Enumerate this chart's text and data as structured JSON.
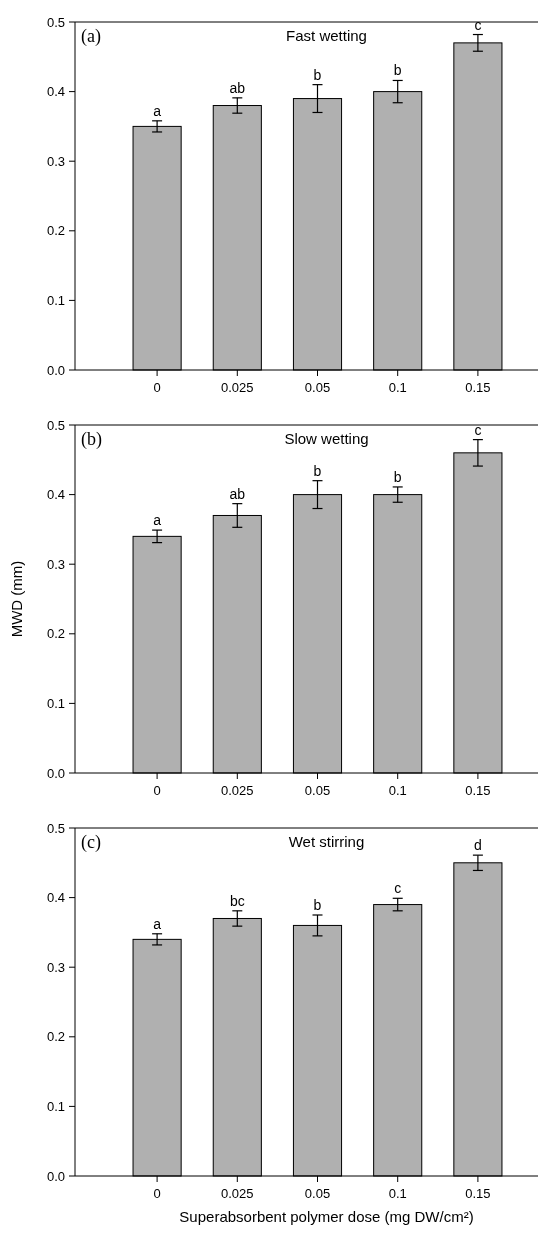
{
  "chart_data": [
    {
      "type": "bar",
      "title": "Fast wetting",
      "annotations": [
        "(a)",
        {
          "text": "a",
          "x": "0",
          "y": 0.358
        },
        {
          "text": "ab",
          "x": "0.025",
          "y": 0.391
        },
        {
          "text": "b",
          "x": "0.05",
          "y": 0.41
        },
        {
          "text": "b",
          "x": "0.1",
          "y": 0.416
        },
        {
          "text": "c",
          "x": "0.15",
          "y": 0.482
        }
      ],
      "categories": [
        "0",
        "0.025",
        "0.05",
        "0.1",
        "0.15"
      ],
      "values": [
        0.35,
        0.38,
        0.39,
        0.4,
        0.47
      ],
      "errors": [
        0.008,
        0.011,
        0.02,
        0.016,
        0.012
      ],
      "color": "#b0b0b0",
      "ylim": [
        0,
        0.5
      ],
      "yticks": [
        {
          "value": 0,
          "label": "0.0"
        },
        {
          "value": 0.1,
          "label": "0.1"
        },
        {
          "value": 0.2,
          "label": "0.2"
        },
        {
          "value": 0.3,
          "label": "0.3"
        },
        {
          "value": 0.4,
          "label": "0.4"
        },
        {
          "value": 0.5,
          "label": "0.5"
        }
      ]
    },
    {
      "type": "bar",
      "title": "Slow wetting",
      "ylabel": "MWD (mm)",
      "annotations": [
        "(b)",
        {
          "text": "a",
          "x": "0",
          "y": 0.349
        },
        {
          "text": "ab",
          "x": "0.025",
          "y": 0.387
        },
        {
          "text": "b",
          "x": "0.05",
          "y": 0.42
        },
        {
          "text": "b",
          "x": "0.1",
          "y": 0.411
        },
        {
          "text": "c",
          "x": "0.15",
          "y": 0.479
        }
      ],
      "categories": [
        "0",
        "0.025",
        "0.05",
        "0.1",
        "0.15"
      ],
      "values": [
        0.34,
        0.37,
        0.4,
        0.4,
        0.46
      ],
      "errors": [
        0.009,
        0.017,
        0.02,
        0.011,
        0.019
      ],
      "color": "#b0b0b0",
      "ylim": [
        0,
        0.5
      ],
      "yticks": [
        {
          "value": 0,
          "label": "0.0"
        },
        {
          "value": 0.1,
          "label": "0.1"
        },
        {
          "value": 0.2,
          "label": "0.2"
        },
        {
          "value": 0.3,
          "label": "0.3"
        },
        {
          "value": 0.4,
          "label": "0.4"
        },
        {
          "value": 0.5,
          "label": "0.5"
        }
      ]
    },
    {
      "type": "bar",
      "title": "Wet stirring",
      "xlabel": "Superabsorbent polymer dose (mg DW/cm²)",
      "annotations": [
        "(c)",
        {
          "text": "a",
          "x": "0",
          "y": 0.348
        },
        {
          "text": "bc",
          "x": "0.025",
          "y": 0.381
        },
        {
          "text": "b",
          "x": "0.05",
          "y": 0.375
        },
        {
          "text": "c",
          "x": "0.1",
          "y": 0.399
        },
        {
          "text": "d",
          "x": "0.15",
          "y": 0.461
        }
      ],
      "categories": [
        "0",
        "0.025",
        "0.05",
        "0.1",
        "0.15"
      ],
      "values": [
        0.34,
        0.37,
        0.36,
        0.39,
        0.45
      ],
      "errors": [
        0.008,
        0.011,
        0.015,
        0.009,
        0.011
      ],
      "color": "#b0b0b0",
      "ylim": [
        0,
        0.5
      ],
      "yticks": [
        {
          "value": 0,
          "label": "0.0"
        },
        {
          "value": 0.1,
          "label": "0.1"
        },
        {
          "value": 0.2,
          "label": "0.2"
        },
        {
          "value": 0.3,
          "label": "0.3"
        },
        {
          "value": 0.4,
          "label": "0.4"
        },
        {
          "value": 0.5,
          "label": "0.5"
        }
      ]
    }
  ]
}
